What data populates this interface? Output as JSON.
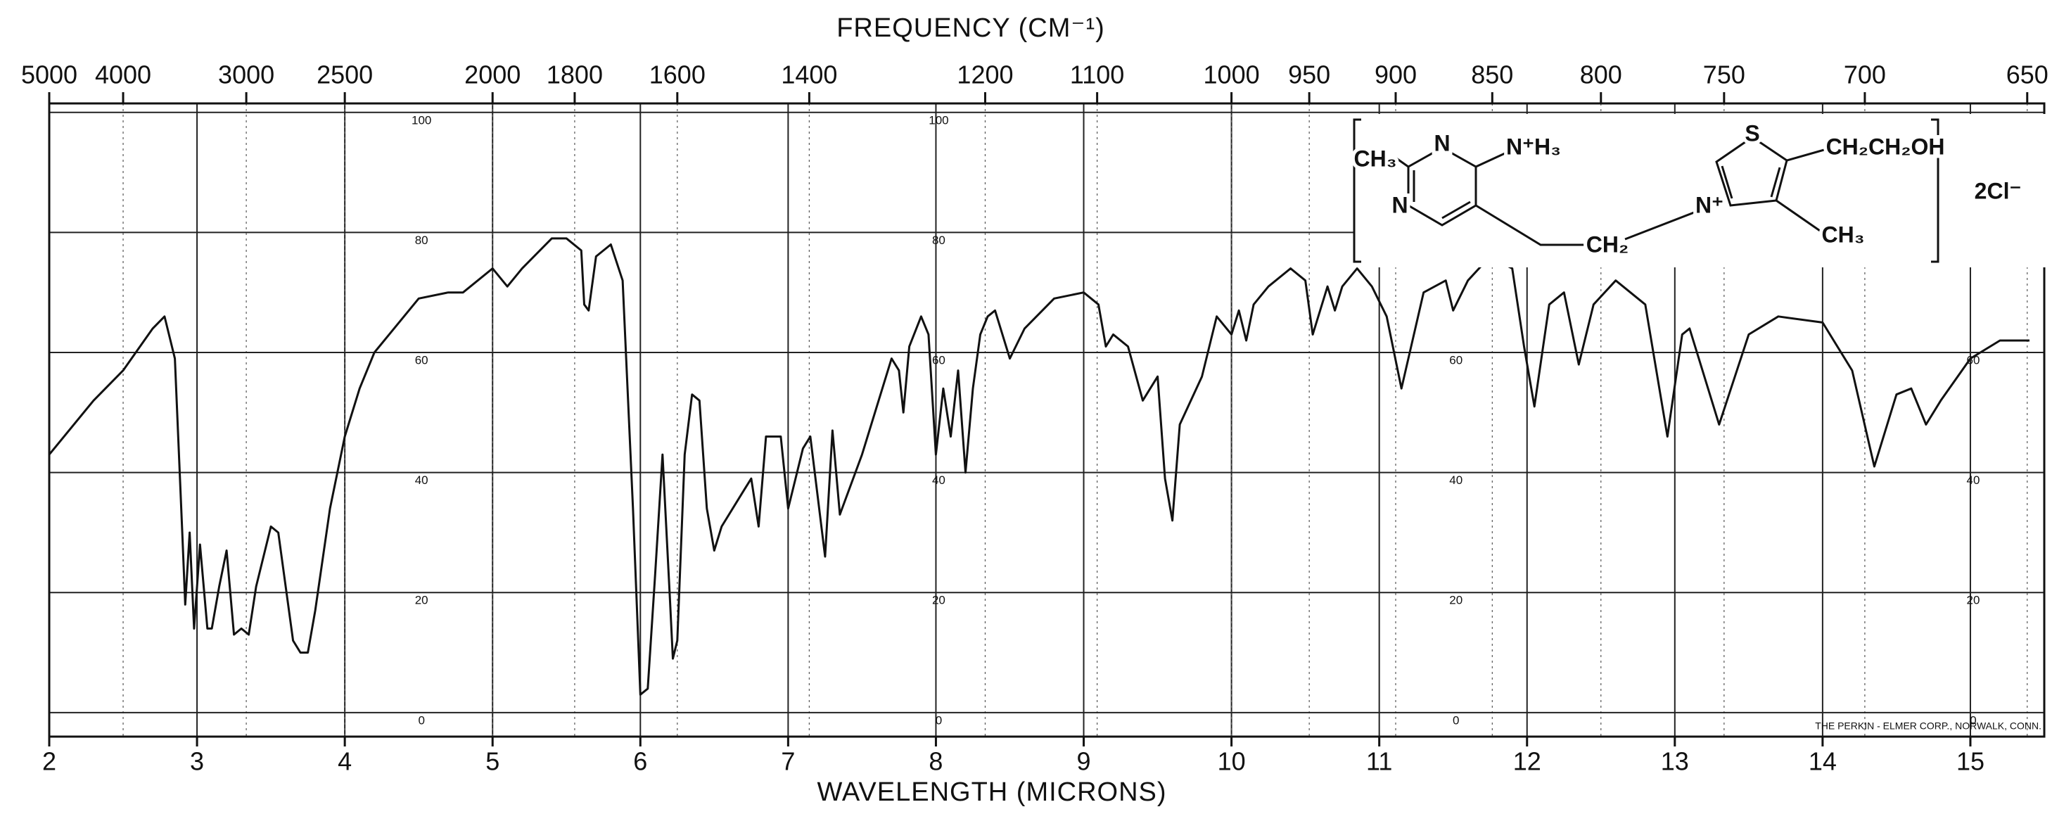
{
  "chart_data": {
    "type": "line",
    "x2label": "FREQUENCY (CM⁻¹)",
    "xlabel": "WAVELENGTH (MICRONS)",
    "xlim": [
      2,
      15.5
    ],
    "xticks": [
      2,
      3,
      4,
      5,
      6,
      7,
      8,
      9,
      10,
      11,
      12,
      13,
      14,
      15
    ],
    "x2ticks": [
      5000,
      4000,
      3000,
      2500,
      2000,
      1800,
      1600,
      1400,
      1200,
      1100,
      1000,
      950,
      900,
      850,
      800,
      750,
      700,
      650
    ],
    "ylim": [
      -4,
      101.5
    ],
    "yticks": [
      0,
      20,
      40,
      60,
      80,
      100
    ],
    "grid": true,
    "color": "#111111",
    "x": [
      2.0,
      2.3,
      2.5,
      2.7,
      2.78,
      2.85,
      2.9,
      2.92,
      2.95,
      2.98,
      3.02,
      3.07,
      3.1,
      3.15,
      3.2,
      3.25,
      3.3,
      3.35,
      3.4,
      3.5,
      3.55,
      3.6,
      3.65,
      3.7,
      3.75,
      3.8,
      3.9,
      4.0,
      4.1,
      4.2,
      4.3,
      4.5,
      4.7,
      4.8,
      5.0,
      5.1,
      5.2,
      5.4,
      5.5,
      5.6,
      5.62,
      5.65,
      5.7,
      5.8,
      5.88,
      5.95,
      6.0,
      6.05,
      6.1,
      6.15,
      6.2,
      6.22,
      6.25,
      6.3,
      6.35,
      6.4,
      6.45,
      6.5,
      6.55,
      6.7,
      6.75,
      6.8,
      6.85,
      6.95,
      7.0,
      7.1,
      7.15,
      7.25,
      7.3,
      7.35,
      7.5,
      7.7,
      7.75,
      7.78,
      7.82,
      7.9,
      7.95,
      8.0,
      8.05,
      8.1,
      8.15,
      8.2,
      8.25,
      8.3,
      8.35,
      8.4,
      8.45,
      8.5,
      8.6,
      8.8,
      9.0,
      9.1,
      9.15,
      9.2,
      9.3,
      9.4,
      9.5,
      9.55,
      9.6,
      9.65,
      9.8,
      9.9,
      10.0,
      10.05,
      10.1,
      10.15,
      10.25,
      10.4,
      10.5,
      10.55,
      10.65,
      10.7,
      10.75,
      10.85,
      10.95,
      11.05,
      11.15,
      11.3,
      11.45,
      11.5,
      11.6,
      11.75,
      11.9,
      11.98,
      12.05,
      12.15,
      12.25,
      12.35,
      12.45,
      12.6,
      12.8,
      12.95,
      13.05,
      13.1,
      13.3,
      13.5,
      13.7,
      14.0,
      14.2,
      14.35,
      14.5,
      14.6,
      14.7,
      14.8,
      15.0,
      15.2,
      15.4
    ],
    "values": [
      43,
      52,
      57,
      64,
      66,
      59,
      30,
      18,
      30,
      14,
      28,
      14,
      14,
      21,
      27,
      13,
      14,
      13,
      21,
      31,
      30,
      21,
      12,
      10,
      10,
      17,
      34,
      46,
      54,
      60,
      63,
      69,
      70,
      70,
      74,
      71,
      74,
      79,
      79,
      77,
      68,
      67,
      76,
      78,
      72,
      34,
      3,
      4,
      23,
      43,
      19,
      9,
      12,
      43,
      53,
      52,
      34,
      27,
      31,
      37,
      39,
      31,
      46,
      46,
      34,
      44,
      46,
      26,
      47,
      33,
      43,
      59,
      57,
      50,
      61,
      66,
      63,
      43,
      54,
      46,
      57,
      40,
      54,
      63,
      66,
      67,
      63,
      59,
      64,
      69,
      70,
      68,
      61,
      63,
      61,
      52,
      56,
      39,
      32,
      48,
      56,
      66,
      63,
      67,
      62,
      68,
      71,
      74,
      72,
      63,
      71,
      67,
      71,
      74,
      71,
      66,
      54,
      70,
      72,
      67,
      72,
      76,
      74,
      61,
      51,
      68,
      70,
      58,
      68,
      72,
      68,
      46,
      63,
      64,
      48,
      63,
      66,
      65,
      57,
      41,
      53,
      54,
      48,
      52,
      59,
      62,
      62
    ],
    "structure_labels": [
      "CH₃",
      "N",
      "N⁺H₃",
      "N",
      "CH₂",
      "N⁺",
      "S",
      "CH₂CH₂OH",
      "CH₃"
    ],
    "counter_ion": "2Cl⁻",
    "footnote": "THE PERKIN - ELMER CORP., NORWALK, CONN."
  }
}
